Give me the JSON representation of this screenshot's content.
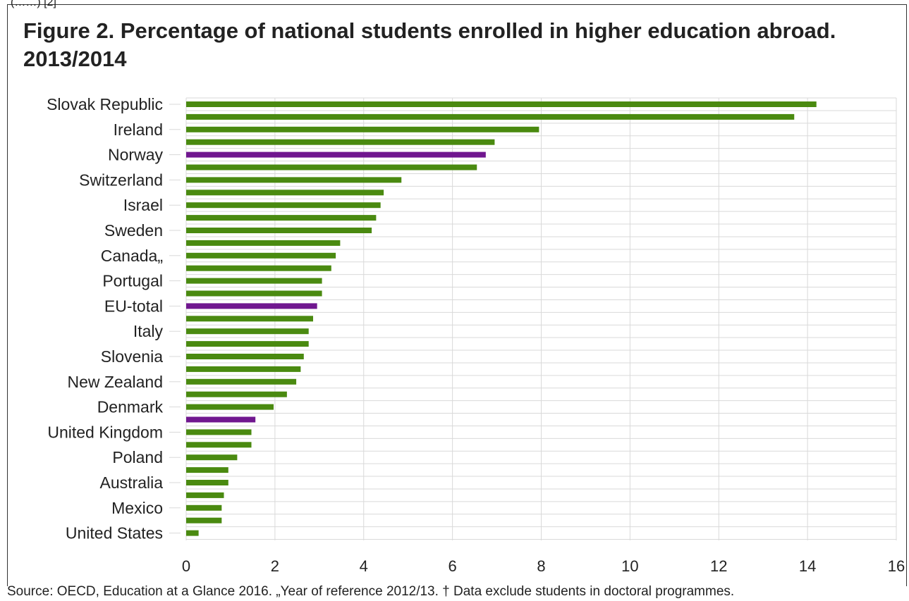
{
  "header": {
    "cut_text": "(……) [2]",
    "title": "Figure 2. Percentage of national students enrolled in higher education abroad. 2013/2014"
  },
  "footer": {
    "source": "Source: OECD, Education at a Glance 2016. „Year of reference 2012/13. † Data exclude students in doctoral programmes."
  },
  "colors": {
    "country": "#4a8a10",
    "aggregate": "#70178f",
    "grid": "#d9d9d9",
    "text": "#222222"
  },
  "chart_data": {
    "type": "bar",
    "orientation": "horizontal",
    "xlim": [
      0,
      16
    ],
    "xticks": [
      0,
      2,
      4,
      6,
      8,
      10,
      12,
      14,
      16
    ],
    "grid": true,
    "categories": [
      "Slovak Republic",
      "",
      "Ireland",
      "",
      "Norway",
      "",
      "Switzerland",
      "",
      "Israel",
      "",
      "Sweden",
      "",
      "Canada„",
      "",
      "Portugal",
      "",
      "EU-total",
      "",
      "Italy",
      "",
      "Slovenia",
      "",
      "New Zealand",
      "",
      "Denmark",
      "",
      "United Kingdom",
      "",
      "Poland",
      "",
      "Australia",
      "",
      "Mexico",
      "",
      "United States"
    ],
    "values": [
      14.2,
      13.7,
      7.95,
      6.95,
      6.75,
      6.55,
      4.85,
      4.45,
      4.38,
      4.28,
      4.18,
      3.47,
      3.37,
      3.27,
      3.06,
      3.06,
      2.95,
      2.86,
      2.76,
      2.76,
      2.65,
      2.58,
      2.48,
      2.27,
      1.97,
      1.56,
      1.47,
      1.47,
      1.15,
      0.95,
      0.95,
      0.85,
      0.8,
      0.8,
      0.28
    ],
    "highlight_indices": [
      4,
      16,
      25
    ]
  }
}
